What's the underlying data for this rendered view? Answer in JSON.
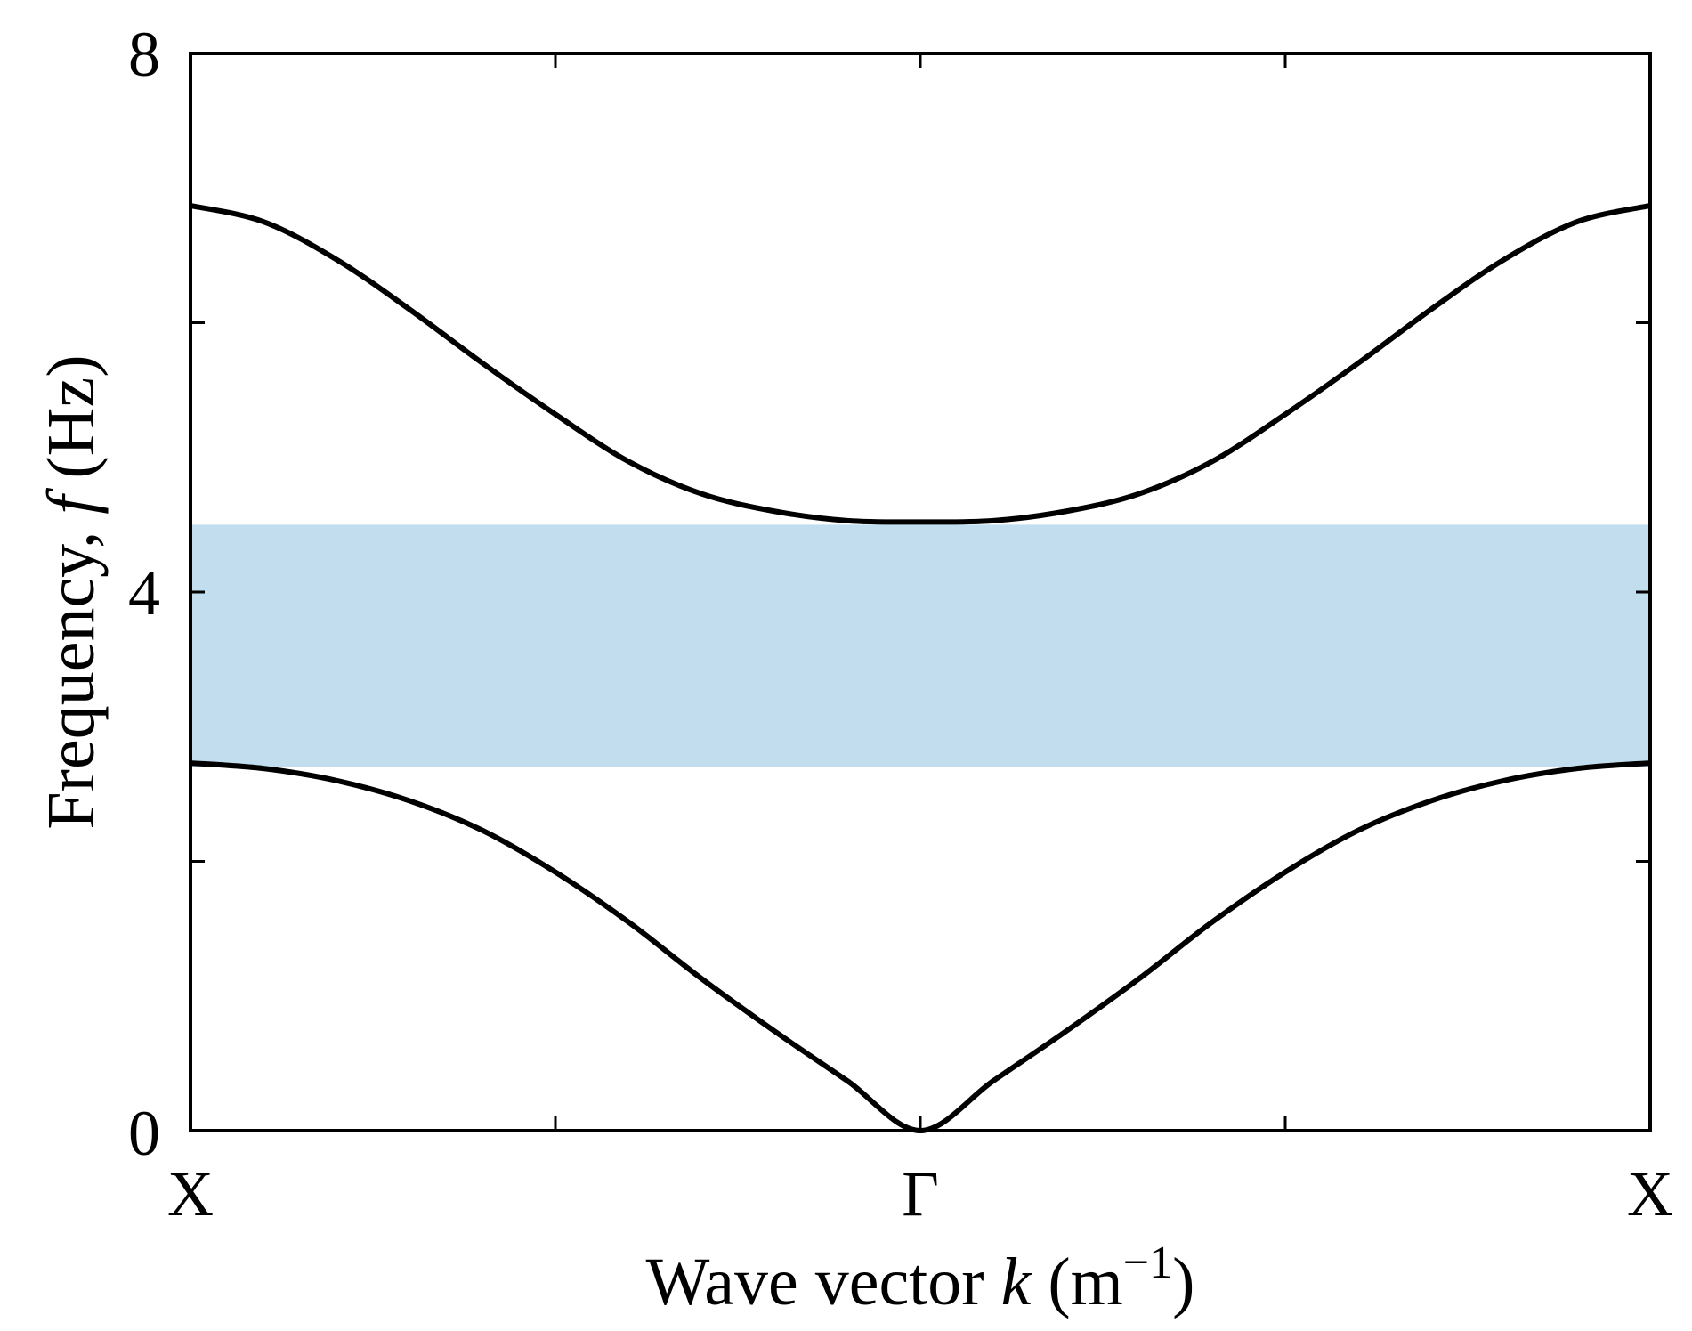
{
  "chart_data": {
    "type": "line",
    "xlabel": {
      "prefix": "Wave vector ",
      "var": "k",
      "unit_open": " (m",
      "sup": "−1",
      "unit_close": ")"
    },
    "ylabel": {
      "prefix": "Frequency, ",
      "var": "f",
      "unit": " (Hz)"
    },
    "x_tick_labels": [
      "X",
      "Γ",
      "X"
    ],
    "y_tick_labels": [
      "0",
      "4",
      "8"
    ],
    "xlim": [
      -1,
      1
    ],
    "ylim": [
      0,
      8
    ],
    "band_gap": {
      "lower": 2.7,
      "upper": 4.5,
      "color": "#c1ddee"
    },
    "series": [
      {
        "x": [
          -1,
          -0.9,
          -0.8,
          -0.7,
          -0.6,
          -0.5,
          -0.4,
          -0.3,
          -0.2,
          -0.1,
          0,
          0.1,
          0.2,
          0.3,
          0.4,
          0.5,
          0.6,
          0.7,
          0.8,
          0.9,
          1
        ],
        "values": [
          2.73,
          2.69,
          2.6,
          2.45,
          2.23,
          1.92,
          1.55,
          1.13,
          0.74,
          0.37,
          0,
          0.37,
          0.74,
          1.13,
          1.55,
          1.92,
          2.23,
          2.45,
          2.6,
          2.69,
          2.73
        ],
        "color": "#000000"
      },
      {
        "x": [
          -1,
          -0.9,
          -0.8,
          -0.7,
          -0.6,
          -0.5,
          -0.4,
          -0.3,
          -0.2,
          -0.1,
          0,
          0.1,
          0.2,
          0.3,
          0.4,
          0.5,
          0.6,
          0.7,
          0.8,
          0.9,
          1
        ],
        "values": [
          6.87,
          6.75,
          6.47,
          6.1,
          5.7,
          5.32,
          4.97,
          4.73,
          4.6,
          4.53,
          4.52,
          4.53,
          4.6,
          4.73,
          4.97,
          5.32,
          5.7,
          6.1,
          6.47,
          6.75,
          6.87
        ],
        "color": "#000000"
      }
    ],
    "grid": false,
    "legend": "none"
  }
}
